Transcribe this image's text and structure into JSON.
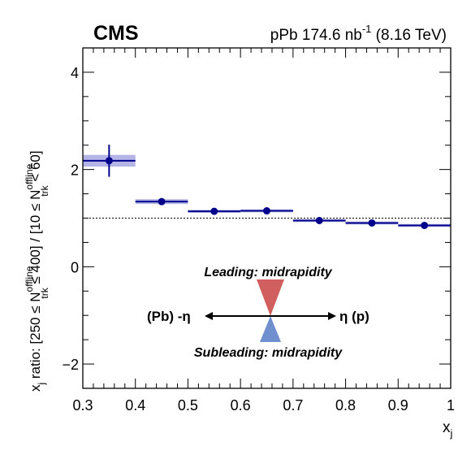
{
  "header": {
    "experiment": "CMS",
    "dataset_prefix": "pPb 174.6 nb",
    "dataset_sup": "-1",
    "dataset_suffix": " (8.16 TeV)"
  },
  "axes": {
    "xlabel_main": "x",
    "xlabel_sub": "j",
    "ylabel_p1": "x",
    "ylabel_p1_sub": "j",
    "ylabel_p2": " ratio: [250 ≤ N",
    "ylabel_n_sup": "offline",
    "ylabel_n_sub": "trk",
    "ylabel_p3": " ≤ 400] / [10 ≤ N",
    "ylabel_p4": " < 60]"
  },
  "annotation": {
    "leading_text": "Leading: midrapidity",
    "subleading_text": "Subleading: midrapidity",
    "left_label": "(Pb) -η",
    "right_label": "η (p)",
    "leading_color": "#d25f5f",
    "subleading_color": "#6f8fcf"
  },
  "colors": {
    "marker": "#00008b",
    "syst_band": "#b4b4e6",
    "reference_line": "#000000"
  },
  "chart_data": {
    "type": "scatter",
    "xlabel": "xj",
    "xlim": [
      0.3,
      1.0
    ],
    "ylim": [
      -2.5,
      4.5
    ],
    "x_ticks": [
      0.3,
      0.4,
      0.5,
      0.6,
      0.7,
      0.8,
      0.9,
      1.0
    ],
    "x_tick_labels": [
      "0.3",
      "0.4",
      "0.5",
      "0.6",
      "0.7",
      "0.8",
      "0.9",
      "1"
    ],
    "y_ticks": [
      -2,
      0,
      2,
      4
    ],
    "y_tick_labels": [
      "−2",
      "0",
      "2",
      "4"
    ],
    "reference_line": 1.0,
    "points": [
      {
        "x": 0.35,
        "x_low": 0.3,
        "x_high": 0.4,
        "y": 2.18,
        "stat_err": 0.33,
        "syst_err": 0.12
      },
      {
        "x": 0.45,
        "x_low": 0.4,
        "x_high": 0.5,
        "y": 1.34,
        "stat_err": 0.03,
        "syst_err": 0.05
      },
      {
        "x": 0.55,
        "x_low": 0.5,
        "x_high": 0.6,
        "y": 1.14,
        "stat_err": 0.02,
        "syst_err": 0.03
      },
      {
        "x": 0.65,
        "x_low": 0.6,
        "x_high": 0.7,
        "y": 1.15,
        "stat_err": 0.02,
        "syst_err": 0.03
      },
      {
        "x": 0.75,
        "x_low": 0.7,
        "x_high": 0.8,
        "y": 0.95,
        "stat_err": 0.02,
        "syst_err": 0.03
      },
      {
        "x": 0.85,
        "x_low": 0.8,
        "x_high": 0.9,
        "y": 0.9,
        "stat_err": 0.02,
        "syst_err": 0.03
      },
      {
        "x": 0.95,
        "x_low": 0.9,
        "x_high": 1.0,
        "y": 0.85,
        "stat_err": 0.02,
        "syst_err": 0.03
      }
    ]
  }
}
